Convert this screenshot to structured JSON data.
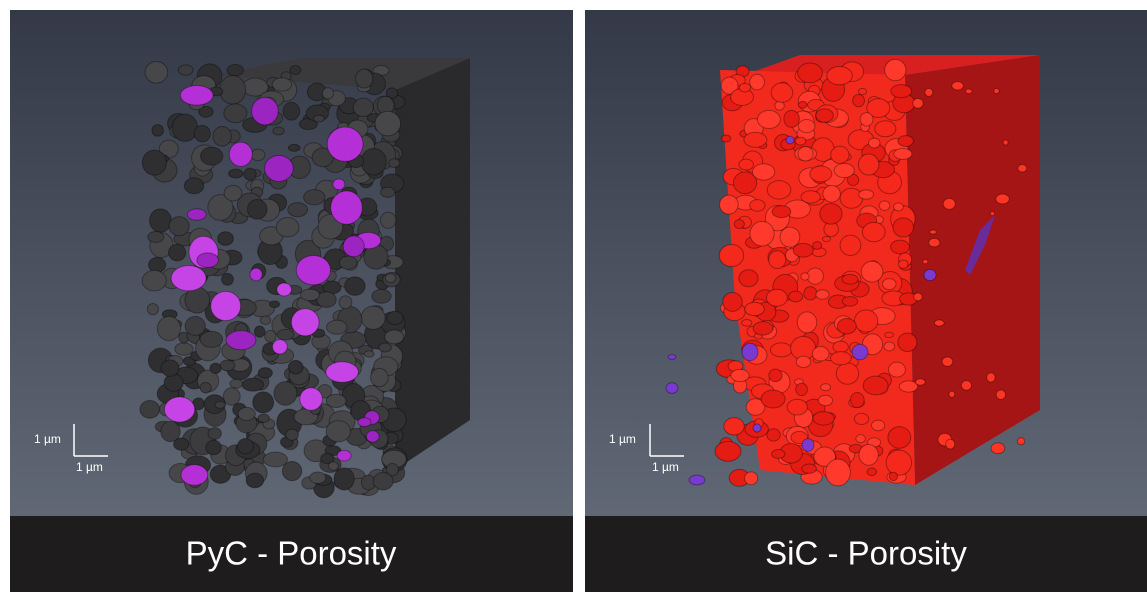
{
  "panels": [
    {
      "caption": "PyC - Porosity",
      "scale_y": "1 µm",
      "scale_x": "1 µm"
    },
    {
      "caption": "SiC - Porosity",
      "scale_y": "1 µm",
      "scale_x": "1 µm"
    }
  ]
}
